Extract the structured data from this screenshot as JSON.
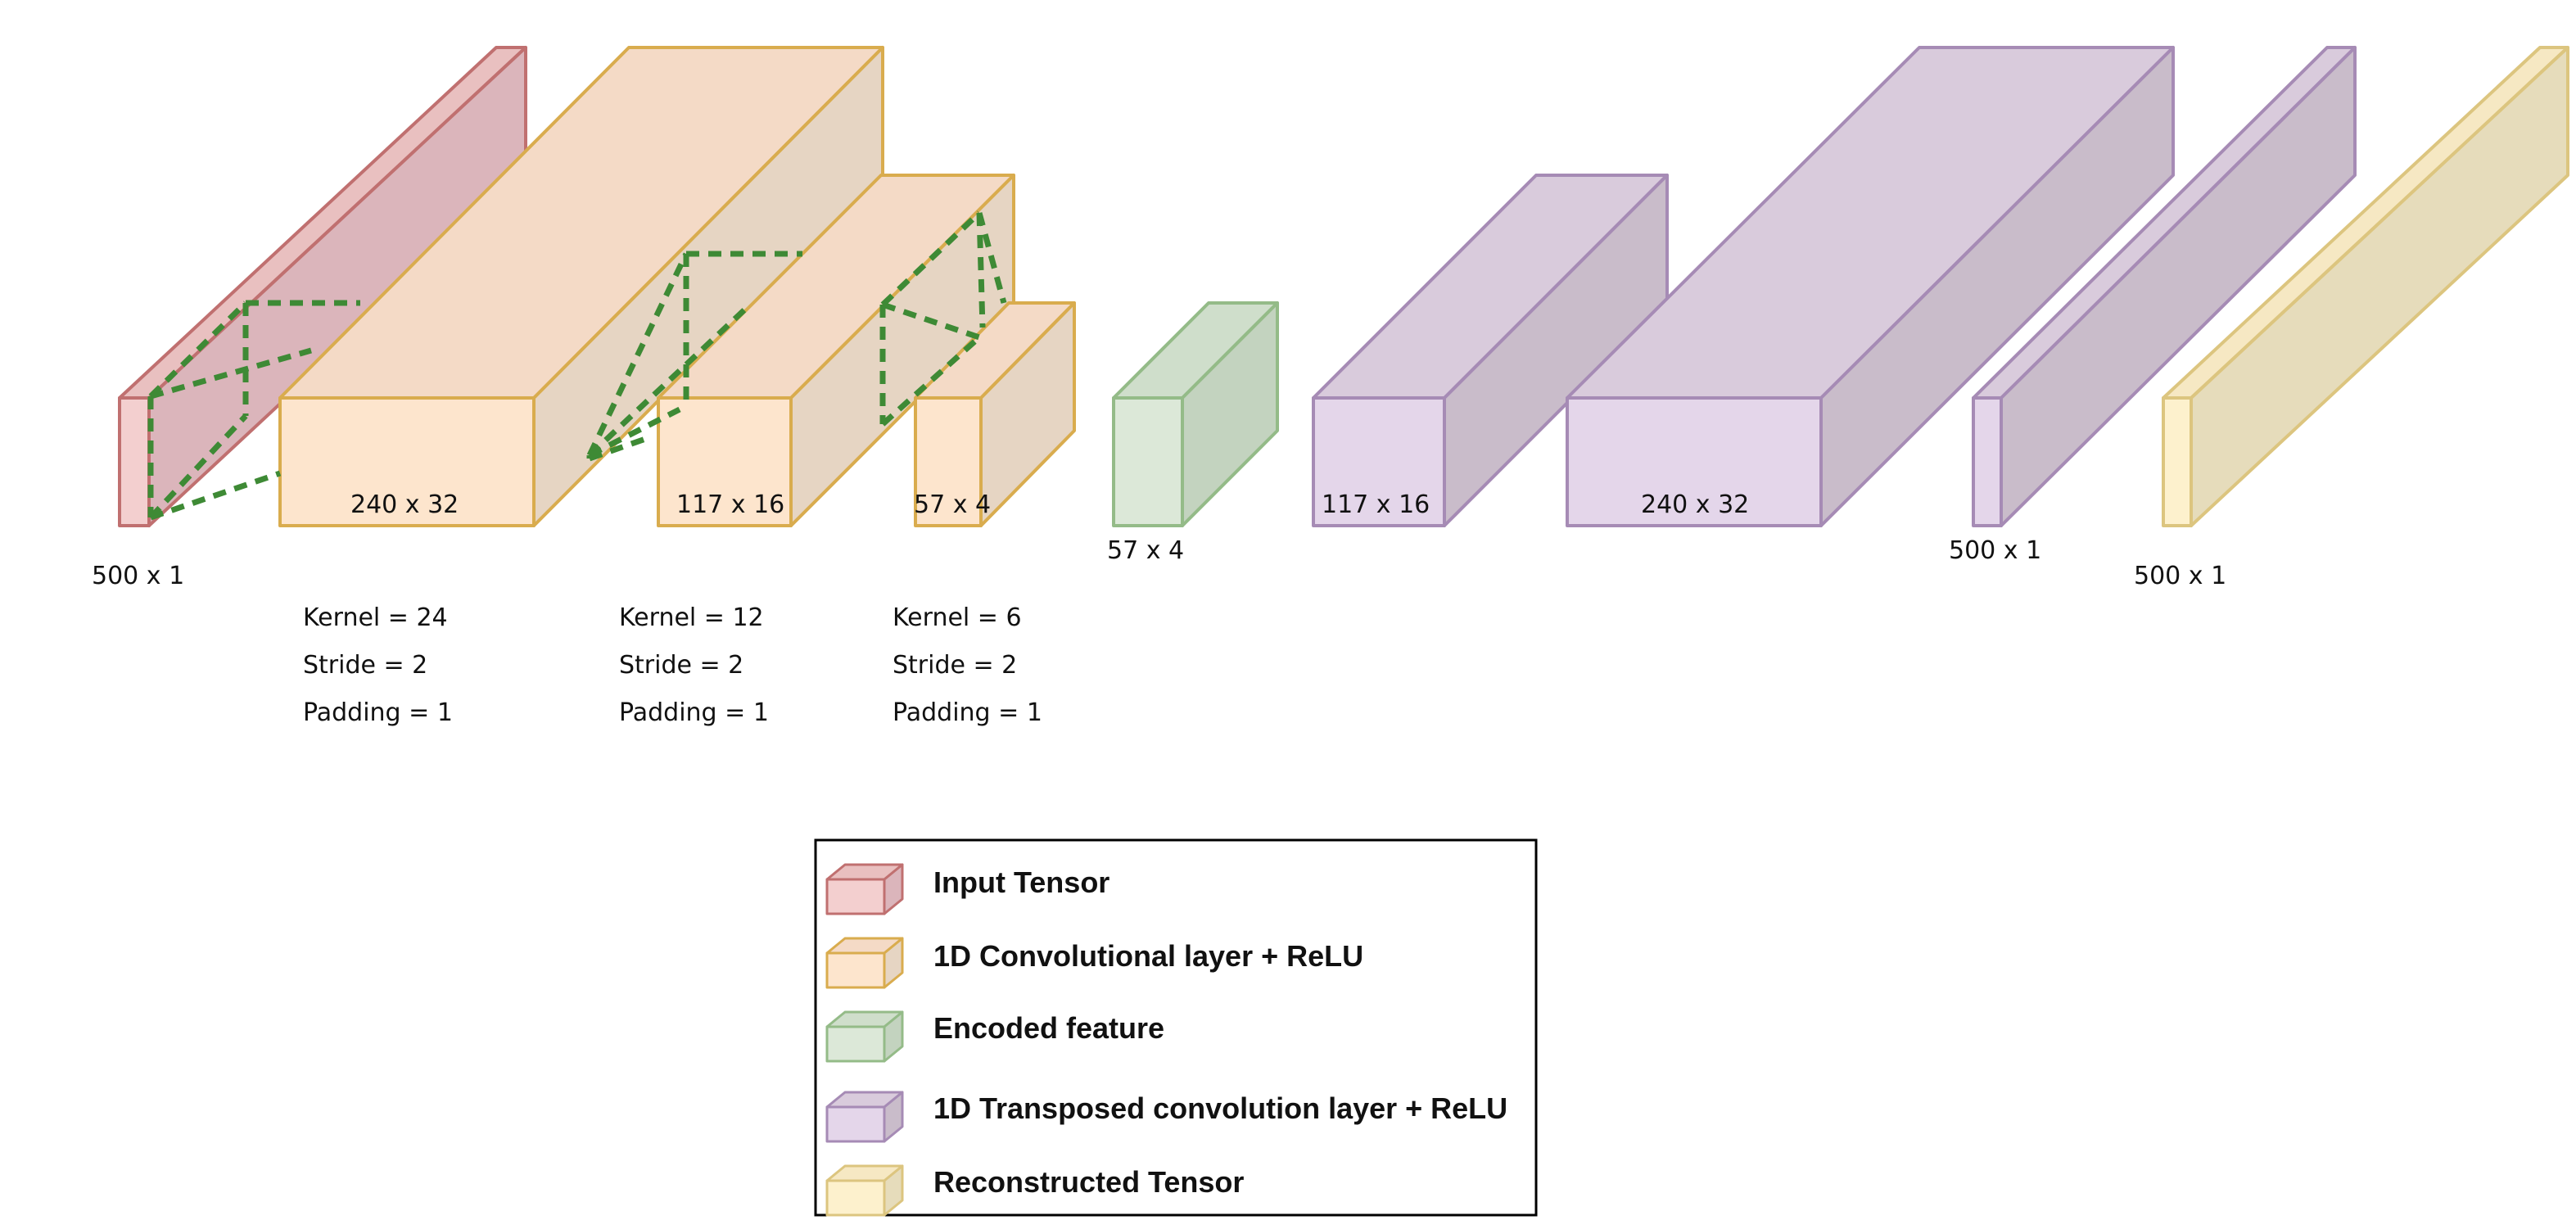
{
  "colors": {
    "input": {
      "front": "#f3cfcf",
      "top": "#e9c0c0",
      "side": "#dbb5bb",
      "stroke": "#c07070"
    },
    "conv": {
      "front": "#fde5cd",
      "top": "#f4dac6",
      "side": "#e6d5c3",
      "stroke": "#d9ac4e"
    },
    "encoded": {
      "front": "#dce8d8",
      "top": "#cfdecb",
      "side": "#c3d3bf",
      "stroke": "#94bb88"
    },
    "tconv": {
      "front": "#e4d6ea",
      "top": "#d9cbdc",
      "side": "#c9bcca",
      "stroke": "#a68bb5"
    },
    "recon": {
      "front": "#fdf1cd",
      "top": "#f6e8c3",
      "side": "#e6dcbb",
      "stroke": "#dcc57f"
    },
    "dashed": "#3e8a35"
  },
  "blocks": [
    {
      "name": "input-tensor-block",
      "type": "input",
      "dims": "500 x 1"
    },
    {
      "name": "conv-layer-1-block",
      "type": "conv",
      "dims": "240 x 32"
    },
    {
      "name": "conv-layer-2-block",
      "type": "conv",
      "dims": "117 x 16"
    },
    {
      "name": "conv-layer-3-block",
      "type": "conv",
      "dims": "57 x 4"
    },
    {
      "name": "encoded-feature-block",
      "type": "encoded",
      "dims": "57 x 4"
    },
    {
      "name": "tconv-layer-1-block",
      "type": "tconv",
      "dims": "117 x 16"
    },
    {
      "name": "tconv-layer-2-block",
      "type": "tconv",
      "dims": "240 x 32"
    },
    {
      "name": "tconv-layer-3-block",
      "type": "tconv",
      "dims": "500 x 1"
    },
    {
      "name": "reconstructed-tensor-block",
      "type": "recon",
      "dims": "500 x 1"
    }
  ],
  "params": [
    {
      "kernel": "Kernel = 24",
      "stride": "Stride = 2",
      "padding": "Padding = 1"
    },
    {
      "kernel": "Kernel = 12",
      "stride": "Stride = 2",
      "padding": "Padding = 1"
    },
    {
      "kernel": "Kernel = 6",
      "stride": "Stride = 2",
      "padding": "Padding = 1"
    }
  ],
  "legend": [
    {
      "type": "input",
      "label": "Input Tensor"
    },
    {
      "type": "conv",
      "label": "1D Convolutional layer + ReLU"
    },
    {
      "type": "encoded",
      "label": "Encoded feature"
    },
    {
      "type": "tconv",
      "label": "1D Transposed convolution layer + ReLU"
    },
    {
      "type": "recon",
      "label": "Reconstructed Tensor"
    }
  ]
}
